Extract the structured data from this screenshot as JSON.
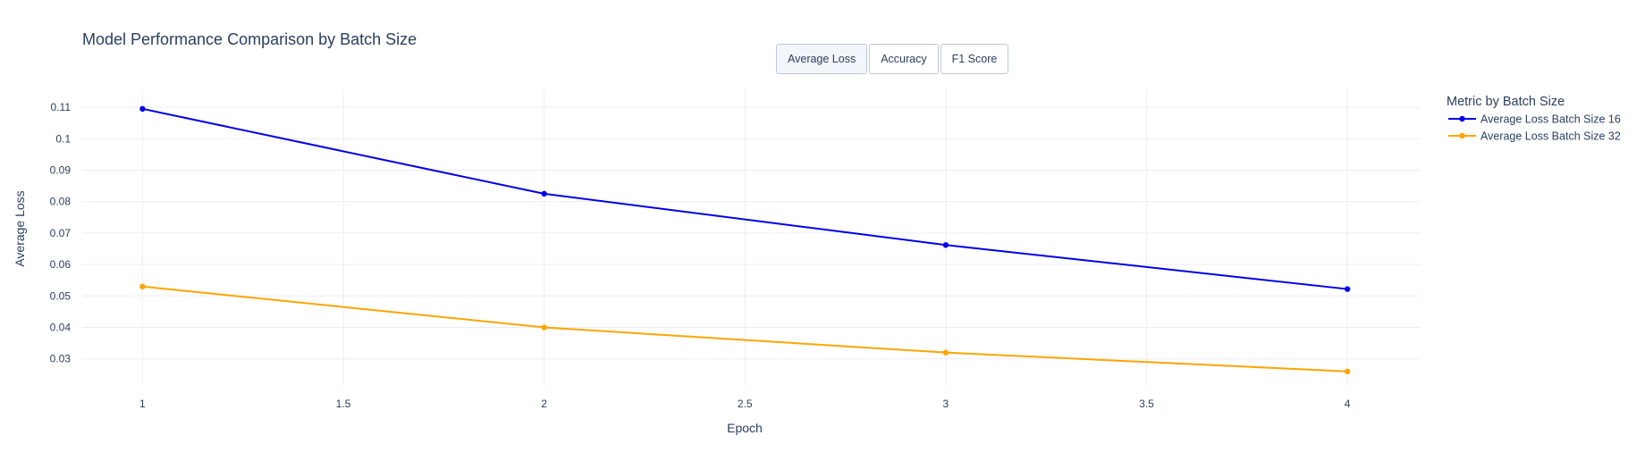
{
  "buttons": [
    {
      "label": "Average Loss",
      "active": true
    },
    {
      "label": "Accuracy",
      "active": false
    },
    {
      "label": "F1 Score",
      "active": false
    }
  ],
  "chart_data": {
    "type": "line",
    "title": "Model Performance Comparison by Batch Size",
    "xlabel": "Epoch",
    "ylabel": "Average Loss",
    "x": [
      1,
      2,
      3,
      4
    ],
    "xticks": [
      "1",
      "1.5",
      "2",
      "2.5",
      "3",
      "3.5",
      "4"
    ],
    "xtick_values": [
      1,
      1.5,
      2,
      2.5,
      3,
      3.5,
      4
    ],
    "yticks": [
      "0.03",
      "0.04",
      "0.05",
      "0.06",
      "0.07",
      "0.08",
      "0.09",
      "0.1",
      "0.11"
    ],
    "ytick_values": [
      0.03,
      0.04,
      0.05,
      0.06,
      0.07,
      0.08,
      0.09,
      0.1,
      0.11
    ],
    "xlim": [
      0.85,
      4.18
    ],
    "ylim": [
      0.0214,
      0.1157
    ],
    "grid": true,
    "legend_title": "Metric by Batch Size",
    "legend_position": "top-right",
    "series": [
      {
        "name": "Average Loss Batch Size 16",
        "color": "#0000e6",
        "values": [
          0.1095,
          0.0825,
          0.0662,
          0.0522
        ]
      },
      {
        "name": "Average Loss Batch Size 32",
        "color": "#ffa500",
        "values": [
          0.053,
          0.04,
          0.032,
          0.026
        ]
      }
    ]
  }
}
